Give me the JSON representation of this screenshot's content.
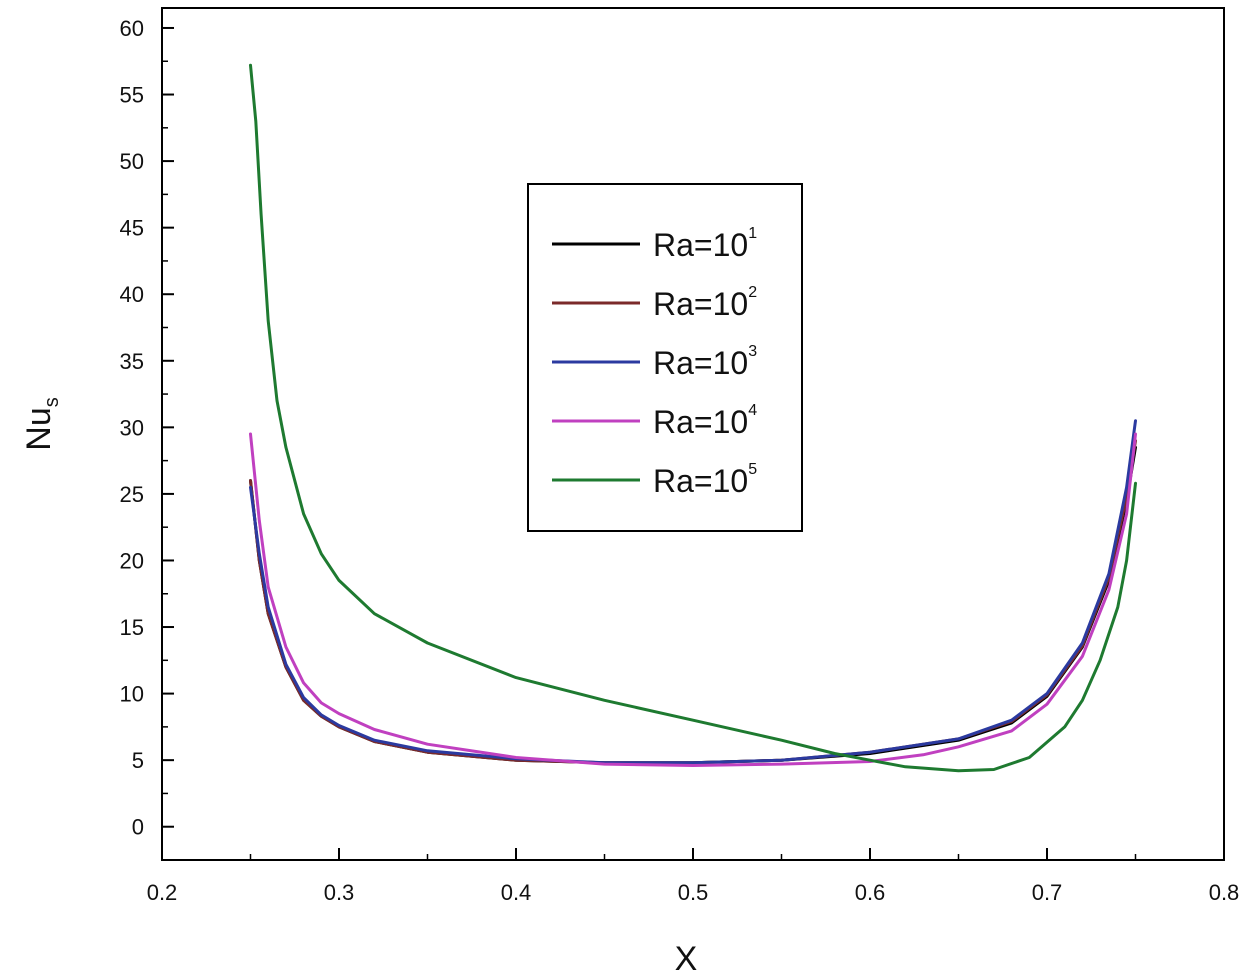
{
  "chart_data": {
    "type": "line",
    "title": "",
    "xlabel": "X",
    "ylabel_main": "Nu",
    "ylabel_sub": "s",
    "xlim": [
      0.2,
      0.8
    ],
    "ylim": [
      -2.5,
      61.5
    ],
    "xticks": [
      0.2,
      0.3,
      0.4,
      0.5,
      0.6,
      0.7,
      0.8
    ],
    "xtick_labels": [
      "0.2",
      "0.3",
      "0.4",
      "0.5",
      "0.6",
      "0.7",
      "0.8"
    ],
    "yticks": [
      0,
      5,
      10,
      15,
      20,
      25,
      30,
      35,
      40,
      45,
      50,
      55,
      60
    ],
    "ytick_labels": [
      "0",
      "5",
      "10",
      "15",
      "20",
      "25",
      "30",
      "35",
      "40",
      "45",
      "50",
      "55",
      "60"
    ],
    "grid": false,
    "legend_position": "center-top",
    "series": [
      {
        "name": "Ra=10",
        "exponent": "1",
        "color": "#000000",
        "x": [
          0.25,
          0.255,
          0.26,
          0.27,
          0.28,
          0.29,
          0.3,
          0.32,
          0.35,
          0.4,
          0.45,
          0.5,
          0.55,
          0.6,
          0.65,
          0.68,
          0.7,
          0.72,
          0.735,
          0.745,
          0.75
        ],
        "y": [
          26,
          20,
          16,
          12,
          9.5,
          8.3,
          7.5,
          6.4,
          5.6,
          5.0,
          4.8,
          4.8,
          5.0,
          5.5,
          6.5,
          7.8,
          9.8,
          13.5,
          18.5,
          24.5,
          28.5
        ]
      },
      {
        "name": "Ra=10",
        "exponent": "2",
        "color": "#7b2a2a",
        "x": [
          0.25,
          0.255,
          0.26,
          0.27,
          0.28,
          0.29,
          0.3,
          0.32,
          0.35,
          0.4,
          0.45,
          0.5,
          0.55,
          0.6,
          0.65,
          0.68,
          0.7,
          0.72,
          0.735,
          0.745,
          0.75
        ],
        "y": [
          26,
          20,
          16,
          12,
          9.5,
          8.3,
          7.5,
          6.4,
          5.6,
          5.0,
          4.8,
          4.8,
          5.0,
          5.6,
          6.6,
          7.9,
          9.9,
          13.6,
          18.7,
          24.8,
          29.0
        ]
      },
      {
        "name": "Ra=10",
        "exponent": "3",
        "color": "#2b3aa0",
        "x": [
          0.25,
          0.255,
          0.26,
          0.27,
          0.28,
          0.29,
          0.3,
          0.32,
          0.35,
          0.4,
          0.45,
          0.5,
          0.55,
          0.6,
          0.65,
          0.68,
          0.7,
          0.72,
          0.735,
          0.745,
          0.75
        ],
        "y": [
          25.5,
          20.5,
          16.5,
          12.2,
          9.7,
          8.4,
          7.6,
          6.5,
          5.7,
          5.1,
          4.8,
          4.8,
          5.0,
          5.6,
          6.6,
          8.0,
          10.0,
          13.8,
          19.0,
          25.5,
          30.5
        ]
      },
      {
        "name": "Ra=10",
        "exponent": "4",
        "color": "#c040c0",
        "x": [
          0.25,
          0.255,
          0.26,
          0.27,
          0.28,
          0.29,
          0.3,
          0.32,
          0.35,
          0.4,
          0.45,
          0.5,
          0.55,
          0.6,
          0.63,
          0.65,
          0.68,
          0.7,
          0.72,
          0.735,
          0.745,
          0.75
        ],
        "y": [
          29.5,
          23.0,
          18.0,
          13.5,
          10.8,
          9.3,
          8.5,
          7.3,
          6.2,
          5.2,
          4.7,
          4.6,
          4.7,
          4.9,
          5.4,
          6.0,
          7.2,
          9.2,
          12.8,
          17.8,
          23.5,
          29.5
        ]
      },
      {
        "name": "Ra=10",
        "exponent": "5",
        "color": "#1e7a30",
        "x": [
          0.25,
          0.253,
          0.256,
          0.26,
          0.265,
          0.27,
          0.28,
          0.29,
          0.3,
          0.32,
          0.35,
          0.4,
          0.45,
          0.5,
          0.55,
          0.58,
          0.6,
          0.62,
          0.65,
          0.67,
          0.69,
          0.71,
          0.72,
          0.73,
          0.74,
          0.745,
          0.75
        ],
        "y": [
          57.2,
          53,
          46,
          38,
          32,
          28.5,
          23.5,
          20.5,
          18.5,
          16,
          13.8,
          11.2,
          9.5,
          8.0,
          6.5,
          5.5,
          5.0,
          4.5,
          4.2,
          4.3,
          5.2,
          7.5,
          9.5,
          12.5,
          16.5,
          20,
          25.8
        ]
      }
    ]
  }
}
